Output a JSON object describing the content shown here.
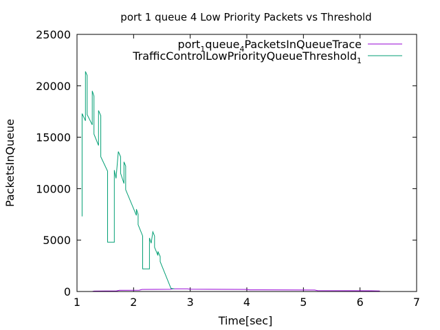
{
  "chart_data": {
    "type": "line",
    "title": "port 1 queue 4 Low Priority Packets vs Threshold",
    "xlabel": "Time[sec]",
    "ylabel": "PacketsInQueue",
    "xlim": [
      1,
      7
    ],
    "ylim": [
      0,
      25000
    ],
    "xticks": [
      1,
      2,
      3,
      4,
      5,
      6,
      7
    ],
    "yticks": [
      0,
      5000,
      10000,
      15000,
      20000,
      25000
    ],
    "legend_position": "top-right",
    "series": [
      {
        "name": "port_1queue_4PacketsInQueueTrace",
        "color": "#9400d3",
        "points": [
          [
            1.27,
            0
          ],
          [
            1.3,
            40
          ],
          [
            1.7,
            60
          ],
          [
            1.75,
            120
          ],
          [
            2.1,
            130
          ],
          [
            2.15,
            200
          ],
          [
            2.65,
            220
          ],
          [
            2.7,
            260
          ],
          [
            2.95,
            260
          ],
          [
            3.0,
            230
          ],
          [
            4.0,
            200
          ],
          [
            4.05,
            160
          ],
          [
            5.2,
            140
          ],
          [
            5.25,
            80
          ],
          [
            6.2,
            70
          ],
          [
            6.35,
            50
          ]
        ]
      },
      {
        "name": "TrafficControlLowPriorityQueueThreshold_1",
        "color": "#009e73",
        "points": [
          [
            1.09,
            7300
          ],
          [
            1.09,
            17300
          ],
          [
            1.15,
            16600
          ],
          [
            1.15,
            21400
          ],
          [
            1.18,
            21000
          ],
          [
            1.18,
            17200
          ],
          [
            1.27,
            16200
          ],
          [
            1.27,
            19500
          ],
          [
            1.3,
            19000
          ],
          [
            1.3,
            15300
          ],
          [
            1.38,
            14200
          ],
          [
            1.38,
            17600
          ],
          [
            1.42,
            17100
          ],
          [
            1.42,
            13100
          ],
          [
            1.54,
            11700
          ],
          [
            1.54,
            4800
          ],
          [
            1.66,
            4800
          ],
          [
            1.66,
            11800
          ],
          [
            1.69,
            11000
          ],
          [
            1.73,
            13600
          ],
          [
            1.77,
            13100
          ],
          [
            1.77,
            11500
          ],
          [
            1.83,
            10500
          ],
          [
            1.83,
            12600
          ],
          [
            1.86,
            12200
          ],
          [
            1.86,
            9900
          ],
          [
            2.05,
            7400
          ],
          [
            2.05,
            8000
          ],
          [
            2.08,
            7500
          ],
          [
            2.08,
            6500
          ],
          [
            2.16,
            5400
          ],
          [
            2.16,
            2200
          ],
          [
            2.28,
            2200
          ],
          [
            2.28,
            5200
          ],
          [
            2.31,
            4700
          ],
          [
            2.34,
            5800
          ],
          [
            2.37,
            5400
          ],
          [
            2.37,
            4300
          ],
          [
            2.43,
            3500
          ],
          [
            2.43,
            3900
          ],
          [
            2.47,
            3400
          ],
          [
            2.47,
            2900
          ],
          [
            2.66,
            300
          ],
          [
            2.72,
            260
          ]
        ]
      }
    ]
  }
}
